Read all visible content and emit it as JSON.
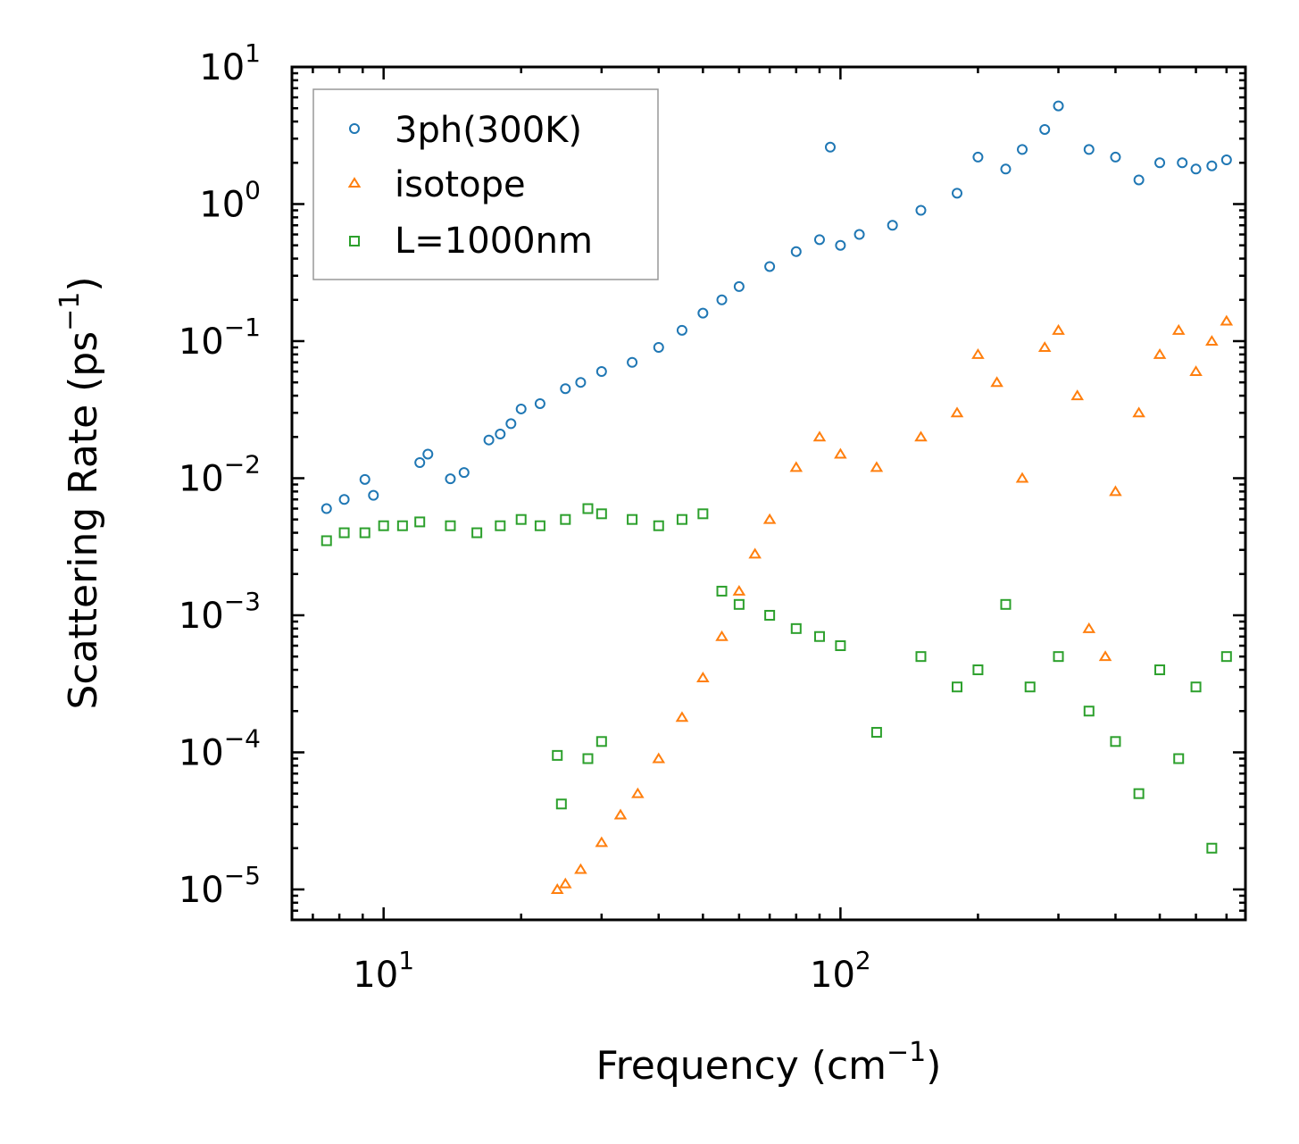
{
  "chart_data": {
    "type": "scatter",
    "title": "",
    "xlabel": "Frequency (cm",
    "xlabel_sup": "−1",
    "xlabel_end": ")",
    "ylabel": "Scattering Rate (ps",
    "ylabel_sup": "−1",
    "ylabel_end": ")",
    "xscale": "log",
    "yscale": "log",
    "xlim": [
      6.3,
      770
    ],
    "ylim": [
      6e-06,
      10
    ],
    "x_ticks": [
      {
        "value": 10,
        "base": "10",
        "exp": "1"
      },
      {
        "value": 100,
        "base": "10",
        "exp": "2"
      }
    ],
    "y_ticks": [
      {
        "value": 10,
        "base": "10",
        "exp": "1"
      },
      {
        "value": 1,
        "base": "10",
        "exp": "0"
      },
      {
        "value": 0.1,
        "base": "10",
        "exp": "−1"
      },
      {
        "value": 0.01,
        "base": "10",
        "exp": "−2"
      },
      {
        "value": 0.001,
        "base": "10",
        "exp": "−3"
      },
      {
        "value": 0.0001,
        "base": "10",
        "exp": "−4"
      },
      {
        "value": 1e-05,
        "base": "10",
        "exp": "−5"
      }
    ],
    "legend_position": "top-left",
    "series": [
      {
        "name": "3ph(300K)",
        "marker": "circle",
        "color": "#1f77b4",
        "points": [
          [
            7.5,
            0.006
          ],
          [
            8.2,
            0.007
          ],
          [
            9.1,
            0.0098
          ],
          [
            9.5,
            0.0075
          ],
          [
            12,
            0.013
          ],
          [
            12.5,
            0.015
          ],
          [
            14,
            0.0099
          ],
          [
            15,
            0.011
          ],
          [
            17,
            0.019
          ],
          [
            18,
            0.021
          ],
          [
            19,
            0.025
          ],
          [
            20,
            0.032
          ],
          [
            22,
            0.035
          ],
          [
            25,
            0.045
          ],
          [
            27,
            0.05
          ],
          [
            30,
            0.06
          ],
          [
            35,
            0.07
          ],
          [
            40,
            0.09
          ],
          [
            45,
            0.12
          ],
          [
            50,
            0.16
          ],
          [
            55,
            0.2
          ],
          [
            60,
            0.25
          ],
          [
            70,
            0.35
          ],
          [
            80,
            0.45
          ],
          [
            90,
            0.55
          ],
          [
            95,
            2.6
          ],
          [
            100,
            0.5
          ],
          [
            110,
            0.6
          ],
          [
            130,
            0.7
          ],
          [
            150,
            0.9
          ],
          [
            180,
            1.2
          ],
          [
            200,
            2.2
          ],
          [
            230,
            1.8
          ],
          [
            250,
            2.5
          ],
          [
            280,
            3.5
          ],
          [
            300,
            5.2
          ],
          [
            350,
            2.5
          ],
          [
            400,
            2.2
          ],
          [
            450,
            1.5
          ],
          [
            500,
            2.0
          ],
          [
            560,
            2.0
          ],
          [
            600,
            1.8
          ],
          [
            650,
            1.9
          ],
          [
            700,
            2.1
          ]
        ]
      },
      {
        "name": "isotope",
        "marker": "triangle",
        "color": "#ff7f0e",
        "points": [
          [
            24,
            1e-05
          ],
          [
            25,
            1.1e-05
          ],
          [
            27,
            1.4e-05
          ],
          [
            30,
            2.2e-05
          ],
          [
            33,
            3.5e-05
          ],
          [
            36,
            5e-05
          ],
          [
            40,
            9e-05
          ],
          [
            45,
            0.00018
          ],
          [
            50,
            0.00035
          ],
          [
            55,
            0.0007
          ],
          [
            60,
            0.0015
          ],
          [
            65,
            0.0028
          ],
          [
            70,
            0.005
          ],
          [
            80,
            0.012
          ],
          [
            90,
            0.02
          ],
          [
            100,
            0.015
          ],
          [
            120,
            0.012
          ],
          [
            150,
            0.02
          ],
          [
            180,
            0.03
          ],
          [
            200,
            0.08
          ],
          [
            220,
            0.05
          ],
          [
            250,
            0.01
          ],
          [
            280,
            0.09
          ],
          [
            300,
            0.12
          ],
          [
            330,
            0.04
          ],
          [
            350,
            0.0008
          ],
          [
            380,
            0.0005
          ],
          [
            400,
            0.008
          ],
          [
            450,
            0.03
          ],
          [
            500,
            0.08
          ],
          [
            550,
            0.12
          ],
          [
            600,
            0.06
          ],
          [
            650,
            0.1
          ],
          [
            700,
            0.14
          ]
        ]
      },
      {
        "name": "L=1000nm",
        "marker": "square",
        "color": "#2ca02c",
        "points": [
          [
            7.5,
            0.0035
          ],
          [
            8.2,
            0.004
          ],
          [
            9.1,
            0.004
          ],
          [
            10,
            0.0045
          ],
          [
            11,
            0.0045
          ],
          [
            12,
            0.0048
          ],
          [
            14,
            0.0045
          ],
          [
            16,
            0.004
          ],
          [
            18,
            0.0045
          ],
          [
            20,
            0.005
          ],
          [
            22,
            0.0045
          ],
          [
            25,
            0.005
          ],
          [
            28,
            0.006
          ],
          [
            30,
            0.0055
          ],
          [
            35,
            0.005
          ],
          [
            40,
            0.0045
          ],
          [
            45,
            0.005
          ],
          [
            50,
            0.0055
          ],
          [
            24,
            9.5e-05
          ],
          [
            24.5,
            4.2e-05
          ],
          [
            28,
            9e-05
          ],
          [
            30,
            0.00012
          ],
          [
            55,
            0.0015
          ],
          [
            60,
            0.0012
          ],
          [
            70,
            0.001
          ],
          [
            80,
            0.0008
          ],
          [
            90,
            0.0007
          ],
          [
            100,
            0.0006
          ],
          [
            120,
            0.00014
          ],
          [
            150,
            0.0005
          ],
          [
            180,
            0.0003
          ],
          [
            200,
            0.0004
          ],
          [
            230,
            0.0012
          ],
          [
            260,
            0.0003
          ],
          [
            300,
            0.0005
          ],
          [
            350,
            0.0002
          ],
          [
            400,
            0.00012
          ],
          [
            450,
            5e-05
          ],
          [
            500,
            0.0004
          ],
          [
            550,
            9e-05
          ],
          [
            600,
            0.0003
          ],
          [
            650,
            2e-05
          ],
          [
            700,
            0.0005
          ]
        ]
      }
    ]
  }
}
